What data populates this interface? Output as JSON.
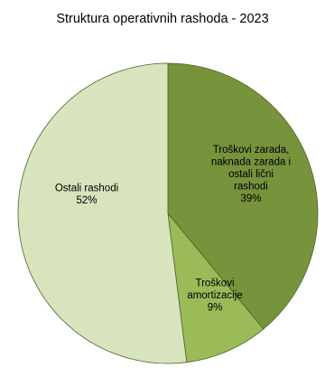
{
  "chart_data": {
    "type": "pie",
    "title": "Struktura operativnih rashoda - 2023",
    "slices": [
      {
        "label": "Troškovi zarada, naknada zarada i ostali lični rashodi",
        "label_lines": [
          "Troškovi zarada,",
          "naknada zarada i",
          "ostali lični",
          "rashodi"
        ],
        "value": 39,
        "value_label": "39%",
        "color": "#77933c"
      },
      {
        "label": "Troškovi amortizacije",
        "label_lines": [
          "Troškovi",
          "amortizacije"
        ],
        "value": 9,
        "value_label": "9%",
        "color": "#9bbb59"
      },
      {
        "label": "Ostali rashodi",
        "label_lines": [
          "Ostali rashodi"
        ],
        "value": 52,
        "value_label": "52%",
        "color": "#d7e4bd"
      }
    ],
    "start_angle": "12 o'clock",
    "direction": "clockwise",
    "legend": "none"
  }
}
